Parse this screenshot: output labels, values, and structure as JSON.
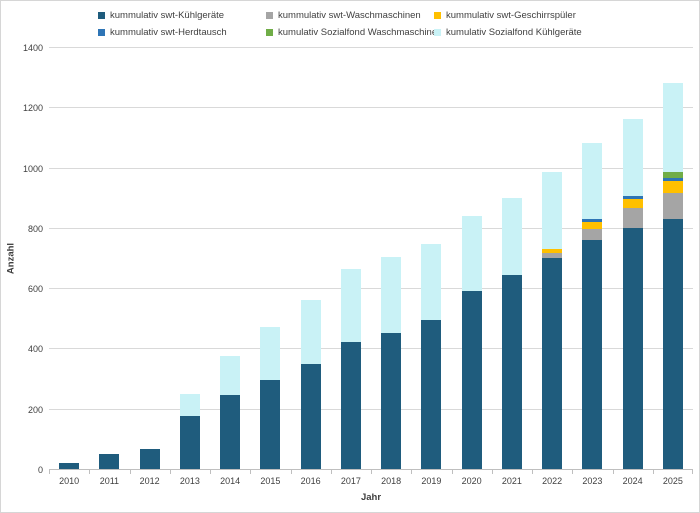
{
  "chart_data": {
    "type": "bar",
    "stacked": true,
    "title": "",
    "xlabel": "Jahr",
    "ylabel": "Anzahl",
    "ylim": [
      0,
      1400
    ],
    "ytick_step": 200,
    "grid": true,
    "legend_position": "top",
    "categories": [
      "2010",
      "2011",
      "2012",
      "2013",
      "2014",
      "2015",
      "2016",
      "2017",
      "2018",
      "2019",
      "2020",
      "2021",
      "2022",
      "2023",
      "2024",
      "2025"
    ],
    "series": [
      {
        "name": "kummulativ swt-Kühlgeräte",
        "color": "#1F5C7D",
        "values": [
          20,
          50,
          65,
          175,
          245,
          295,
          350,
          420,
          450,
          495,
          590,
          645,
          700,
          760,
          800,
          830
        ]
      },
      {
        "name": "kummulativ swt-Waschmaschinen",
        "color": "#A5A5A5",
        "values": [
          0,
          0,
          0,
          0,
          0,
          0,
          0,
          0,
          0,
          0,
          0,
          0,
          15,
          35,
          65,
          85
        ]
      },
      {
        "name": "kummulativ swt-Geschirrspüler",
        "color": "#FFC000",
        "values": [
          0,
          0,
          0,
          0,
          0,
          0,
          0,
          0,
          0,
          0,
          0,
          0,
          15,
          25,
          30,
          40
        ]
      },
      {
        "name": "kummulativ swt-Herdtausch",
        "color": "#2E75B6",
        "values": [
          0,
          0,
          0,
          0,
          0,
          0,
          0,
          0,
          0,
          0,
          0,
          0,
          0,
          10,
          10,
          10
        ]
      },
      {
        "name": "kumulativ Sozialfond Waschmaschine",
        "color": "#70AD47",
        "values": [
          0,
          0,
          0,
          0,
          0,
          0,
          0,
          0,
          0,
          0,
          0,
          0,
          0,
          0,
          0,
          20
        ]
      },
      {
        "name": "kumulativ Sozialfond Kühlgeräte",
        "color": "#C9F2F6",
        "values": [
          0,
          0,
          0,
          75,
          130,
          175,
          210,
          245,
          255,
          250,
          250,
          255,
          255,
          250,
          255,
          295
        ]
      }
    ],
    "totals": [
      20,
      50,
      65,
      250,
      375,
      470,
      560,
      665,
      705,
      745,
      840,
      900,
      985,
      1080,
      1160,
      1280
    ]
  },
  "colors": {
    "gridline": "#D9D9D9",
    "axis_line": "#BFBFBF",
    "text": "#404040",
    "background": "#FFFFFF"
  }
}
